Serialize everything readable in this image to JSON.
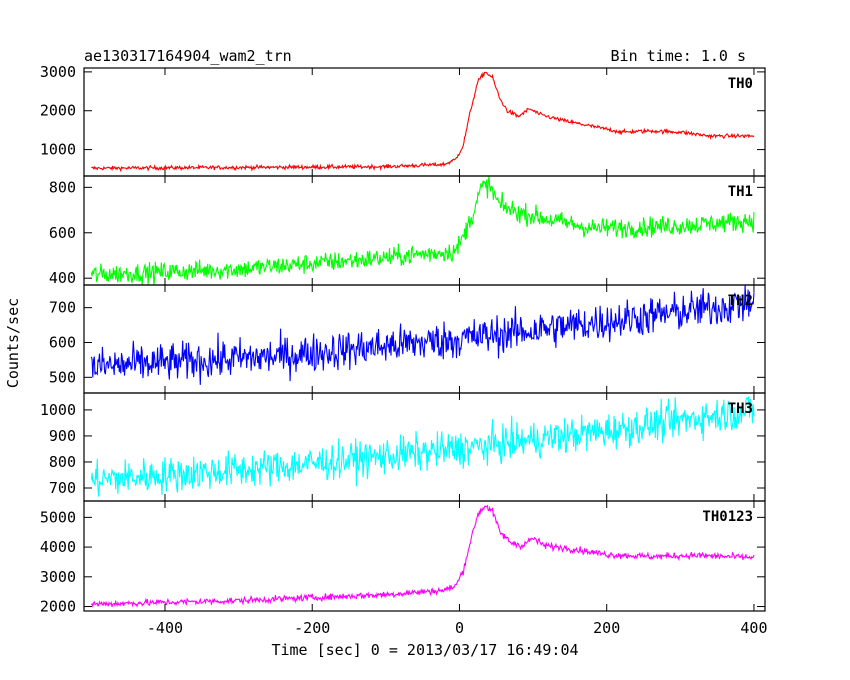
{
  "header": {
    "left": "ae130317164904_wam2_trn",
    "right": "Bin time: 1.0 s"
  },
  "chart_data": {
    "type": "line",
    "title": "ae130317164904_wam2_trn",
    "bin_time": "Bin time: 1.0 s",
    "xlabel": "Time [sec] 0 = 2013/03/17 16:49:04",
    "ylabel": "Counts/sec",
    "xlim": [
      -510,
      415
    ],
    "x_ticks": [
      "-400",
      "-200",
      "0",
      "200",
      "400"
    ],
    "x_tick_values": [
      -400,
      -200,
      0,
      200,
      400
    ],
    "grid": false,
    "panels": [
      {
        "name": "TH0",
        "color": "#ff0000",
        "ylim": [
          320,
          3100
        ],
        "y_ticks": [
          "1000",
          "2000",
          "3000"
        ],
        "y_tick_values": [
          1000,
          2000,
          3000
        ],
        "noise": 25,
        "profile": [
          [
            -500,
            520
          ],
          [
            -300,
            540
          ],
          [
            -100,
            560
          ],
          [
            -20,
            620
          ],
          [
            -5,
            750
          ],
          [
            5,
            1100
          ],
          [
            15,
            2000
          ],
          [
            25,
            2750
          ],
          [
            35,
            3000
          ],
          [
            45,
            2850
          ],
          [
            55,
            2300
          ],
          [
            65,
            2000
          ],
          [
            80,
            1850
          ],
          [
            95,
            2050
          ],
          [
            110,
            1900
          ],
          [
            140,
            1750
          ],
          [
            180,
            1600
          ],
          [
            220,
            1450
          ],
          [
            260,
            1480
          ],
          [
            300,
            1450
          ],
          [
            340,
            1350
          ],
          [
            400,
            1350
          ]
        ]
      },
      {
        "name": "TH1",
        "color": "#00ff00",
        "ylim": [
          370,
          850
        ],
        "y_ticks": [
          "400",
          "600",
          "800"
        ],
        "y_tick_values": [
          400,
          600,
          800
        ],
        "noise": 22,
        "profile": [
          [
            -500,
            415
          ],
          [
            -300,
            440
          ],
          [
            -100,
            490
          ],
          [
            -5,
            520
          ],
          [
            5,
            580
          ],
          [
            20,
            700
          ],
          [
            30,
            800
          ],
          [
            40,
            810
          ],
          [
            55,
            720
          ],
          [
            80,
            690
          ],
          [
            120,
            660
          ],
          [
            180,
            620
          ],
          [
            250,
            625
          ],
          [
            320,
            635
          ],
          [
            400,
            655
          ]
        ]
      },
      {
        "name": "TH2",
        "color": "#0000ff",
        "ylim": [
          455,
          765
        ],
        "y_ticks": [
          "500",
          "600",
          "700"
        ],
        "y_tick_values": [
          500,
          600,
          700
        ],
        "noise": 28,
        "profile": [
          [
            -500,
            530
          ],
          [
            -250,
            560
          ],
          [
            0,
            610
          ],
          [
            200,
            660
          ],
          [
            400,
            715
          ]
        ]
      },
      {
        "name": "TH3",
        "color": "#00ffff",
        "ylim": [
          650,
          1065
        ],
        "y_ticks": [
          "700",
          "800",
          "900",
          "1000"
        ],
        "y_tick_values": [
          700,
          800,
          900,
          1000
        ],
        "noise": 35,
        "profile": [
          [
            -500,
            730
          ],
          [
            -250,
            780
          ],
          [
            0,
            850
          ],
          [
            200,
            920
          ],
          [
            400,
            1000
          ]
        ]
      },
      {
        "name": "TH0123",
        "color": "#ff00ff",
        "ylim": [
          1850,
          5550
        ],
        "y_ticks": [
          "2000",
          "3000",
          "4000",
          "5000"
        ],
        "y_tick_values": [
          2000,
          3000,
          4000,
          5000
        ],
        "noise": 55,
        "profile": [
          [
            -500,
            2080
          ],
          [
            -300,
            2200
          ],
          [
            -100,
            2400
          ],
          [
            -20,
            2550
          ],
          [
            -5,
            2700
          ],
          [
            5,
            3200
          ],
          [
            15,
            4200
          ],
          [
            25,
            5100
          ],
          [
            35,
            5400
          ],
          [
            45,
            5200
          ],
          [
            55,
            4500
          ],
          [
            70,
            4150
          ],
          [
            85,
            4050
          ],
          [
            100,
            4300
          ],
          [
            115,
            4050
          ],
          [
            150,
            3950
          ],
          [
            200,
            3750
          ],
          [
            260,
            3680
          ],
          [
            320,
            3720
          ],
          [
            400,
            3650
          ]
        ]
      }
    ]
  }
}
